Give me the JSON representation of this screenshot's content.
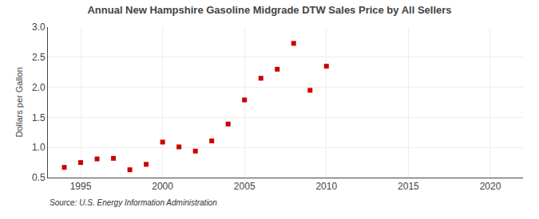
{
  "chart_data": {
    "type": "scatter",
    "title": "Annual New Hampshire Gasoline Midgrade DTW Sales Price by All Sellers",
    "ylabel": "Dollars per Gallon",
    "annotations": [
      "Source: U.S. Energy Information Administration"
    ],
    "x": [
      1994,
      1995,
      1996,
      1997,
      1998,
      1999,
      2000,
      2001,
      2002,
      2003,
      2004,
      2005,
      2006,
      2007,
      2008,
      2009,
      2010
    ],
    "values": [
      0.67,
      0.75,
      0.81,
      0.82,
      0.63,
      0.72,
      1.09,
      1.01,
      0.94,
      1.11,
      1.39,
      1.79,
      2.15,
      2.3,
      2.73,
      1.95,
      2.35
    ],
    "color": "#cc0000",
    "marker": "square",
    "xlim": [
      1993,
      2022
    ],
    "ylim": [
      0.5,
      3.0
    ],
    "xticks": [
      1995,
      2000,
      2005,
      2010,
      2015,
      2020
    ],
    "yticks": [
      0.5,
      {
        "value": 1.0,
        "label": "1.0"
      },
      1.5,
      {
        "value": 2.0,
        "label": "2.0"
      },
      2.5,
      {
        "value": 3.0,
        "label": "3.0"
      }
    ],
    "grid": true
  }
}
